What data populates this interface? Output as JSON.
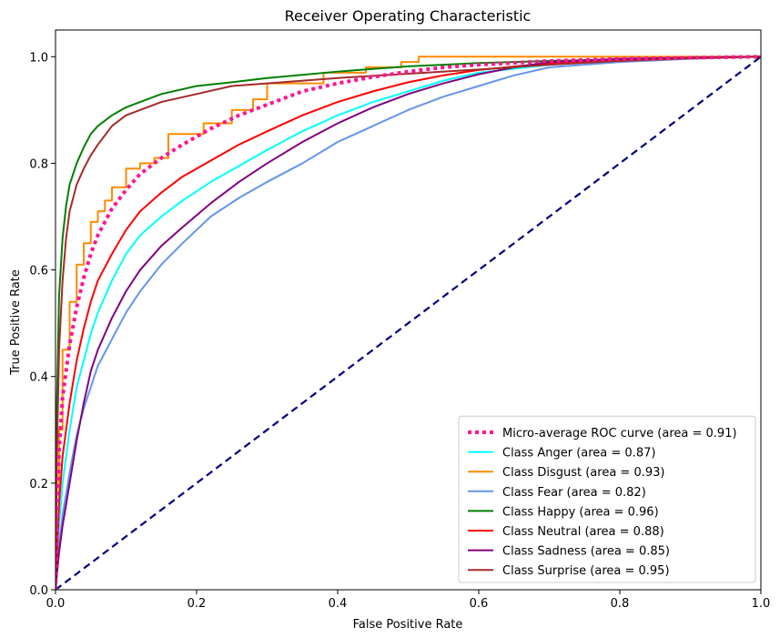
{
  "chart_data": {
    "type": "line",
    "title": "Receiver Operating Characteristic",
    "xlabel": "False Positive Rate",
    "ylabel": "True Positive Rate",
    "xlim": [
      0,
      1
    ],
    "ylim": [
      0,
      1.05
    ],
    "xticks": [
      "0.0",
      "0.2",
      "0.4",
      "0.6",
      "0.8",
      "1.0"
    ],
    "yticks": [
      "0.0",
      "0.2",
      "0.4",
      "0.6",
      "0.8",
      "1.0"
    ],
    "grid": false,
    "legend_position": "lower-right",
    "series": [
      {
        "name": "Micro-average ROC curve (area = 0.91)",
        "color": "#ff1493",
        "style": "dotted",
        "width": 4,
        "x": [
          0,
          0.005,
          0.01,
          0.02,
          0.03,
          0.04,
          0.05,
          0.06,
          0.08,
          0.1,
          0.12,
          0.15,
          0.18,
          0.22,
          0.26,
          0.3,
          0.35,
          0.4,
          0.45,
          0.5,
          0.55,
          0.6,
          0.7,
          0.8,
          0.9,
          1.0
        ],
        "y": [
          0,
          0.26,
          0.36,
          0.46,
          0.53,
          0.585,
          0.63,
          0.665,
          0.715,
          0.75,
          0.78,
          0.81,
          0.835,
          0.865,
          0.89,
          0.91,
          0.935,
          0.95,
          0.962,
          0.972,
          0.98,
          0.985,
          0.992,
          0.996,
          0.998,
          1.0
        ]
      },
      {
        "name": "Class Anger (area = 0.87)",
        "color": "#00ffff",
        "style": "solid",
        "width": 2,
        "x": [
          0,
          0.005,
          0.01,
          0.02,
          0.03,
          0.04,
          0.05,
          0.06,
          0.08,
          0.1,
          0.12,
          0.15,
          0.18,
          0.22,
          0.26,
          0.3,
          0.35,
          0.4,
          0.45,
          0.5,
          0.55,
          0.6,
          0.7,
          0.8,
          0.9,
          1.0
        ],
        "y": [
          0,
          0.12,
          0.2,
          0.3,
          0.38,
          0.43,
          0.48,
          0.52,
          0.58,
          0.63,
          0.665,
          0.7,
          0.73,
          0.765,
          0.795,
          0.825,
          0.86,
          0.89,
          0.915,
          0.935,
          0.955,
          0.97,
          0.985,
          0.993,
          0.998,
          1.0
        ]
      },
      {
        "name": "Class Disgust (area = 0.93)",
        "color": "#ff8c00",
        "style": "solid",
        "width": 2,
        "x": [
          0,
          0.0,
          0.005,
          0.005,
          0.01,
          0.01,
          0.02,
          0.02,
          0.03,
          0.03,
          0.04,
          0.04,
          0.05,
          0.05,
          0.06,
          0.06,
          0.07,
          0.07,
          0.08,
          0.08,
          0.1,
          0.1,
          0.12,
          0.12,
          0.14,
          0.14,
          0.16,
          0.16,
          0.21,
          0.21,
          0.25,
          0.25,
          0.28,
          0.28,
          0.3,
          0.3,
          0.38,
          0.38,
          0.44,
          0.44,
          0.49,
          0.49,
          0.515,
          0.515,
          1.0
        ],
        "y": [
          0,
          0.15,
          0.15,
          0.3,
          0.3,
          0.45,
          0.45,
          0.54,
          0.54,
          0.61,
          0.61,
          0.65,
          0.65,
          0.69,
          0.69,
          0.71,
          0.71,
          0.73,
          0.73,
          0.755,
          0.755,
          0.79,
          0.79,
          0.8,
          0.8,
          0.81,
          0.81,
          0.855,
          0.855,
          0.875,
          0.875,
          0.9,
          0.9,
          0.92,
          0.92,
          0.95,
          0.95,
          0.97,
          0.97,
          0.98,
          0.98,
          0.99,
          0.99,
          1.0,
          1.0
        ]
      },
      {
        "name": "Class Fear (area = 0.82)",
        "color": "#6495ed",
        "style": "solid",
        "width": 2,
        "x": [
          0,
          0.005,
          0.01,
          0.02,
          0.03,
          0.04,
          0.05,
          0.06,
          0.08,
          0.1,
          0.12,
          0.15,
          0.18,
          0.22,
          0.26,
          0.3,
          0.35,
          0.4,
          0.45,
          0.5,
          0.55,
          0.6,
          0.65,
          0.7,
          0.8,
          0.9,
          1.0
        ],
        "y": [
          0,
          0.08,
          0.14,
          0.22,
          0.29,
          0.34,
          0.38,
          0.42,
          0.47,
          0.52,
          0.56,
          0.61,
          0.65,
          0.7,
          0.735,
          0.765,
          0.8,
          0.84,
          0.87,
          0.9,
          0.925,
          0.945,
          0.965,
          0.98,
          0.99,
          0.996,
          1.0
        ]
      },
      {
        "name": "Class Happy (area = 0.96)",
        "color": "#008000",
        "style": "solid",
        "width": 2,
        "x": [
          0,
          0.002,
          0.005,
          0.01,
          0.015,
          0.02,
          0.03,
          0.04,
          0.05,
          0.06,
          0.08,
          0.1,
          0.12,
          0.15,
          0.2,
          0.25,
          0.3,
          0.4,
          0.5,
          0.6,
          0.7,
          0.8,
          0.9,
          1.0
        ],
        "y": [
          0,
          0.35,
          0.55,
          0.66,
          0.72,
          0.76,
          0.8,
          0.83,
          0.855,
          0.87,
          0.89,
          0.905,
          0.915,
          0.93,
          0.945,
          0.952,
          0.96,
          0.972,
          0.982,
          0.988,
          0.992,
          0.995,
          0.998,
          1.0
        ]
      },
      {
        "name": "Class Neutral (area = 0.88)",
        "color": "#ff0000",
        "style": "solid",
        "width": 2,
        "x": [
          0,
          0.005,
          0.01,
          0.02,
          0.03,
          0.04,
          0.05,
          0.06,
          0.08,
          0.1,
          0.12,
          0.15,
          0.18,
          0.22,
          0.26,
          0.3,
          0.35,
          0.4,
          0.45,
          0.5,
          0.55,
          0.6,
          0.7,
          0.8,
          0.9,
          1.0
        ],
        "y": [
          0,
          0.16,
          0.25,
          0.35,
          0.43,
          0.49,
          0.54,
          0.58,
          0.63,
          0.675,
          0.71,
          0.745,
          0.775,
          0.805,
          0.835,
          0.86,
          0.89,
          0.915,
          0.935,
          0.952,
          0.965,
          0.975,
          0.988,
          0.995,
          0.998,
          1.0
        ]
      },
      {
        "name": "Class Sadness (area = 0.85)",
        "color": "#800080",
        "style": "solid",
        "width": 2,
        "x": [
          0,
          0.005,
          0.01,
          0.02,
          0.03,
          0.04,
          0.05,
          0.06,
          0.08,
          0.1,
          0.12,
          0.15,
          0.18,
          0.22,
          0.26,
          0.3,
          0.35,
          0.4,
          0.45,
          0.5,
          0.55,
          0.6,
          0.65,
          0.7,
          0.8,
          0.9,
          1.0
        ],
        "y": [
          0,
          0.07,
          0.12,
          0.2,
          0.28,
          0.35,
          0.41,
          0.45,
          0.51,
          0.56,
          0.6,
          0.645,
          0.68,
          0.725,
          0.765,
          0.8,
          0.84,
          0.875,
          0.905,
          0.93,
          0.95,
          0.967,
          0.98,
          0.99,
          0.996,
          0.998,
          1.0
        ]
      },
      {
        "name": "Class Surprise (area = 0.95)",
        "color": "#a52a2a",
        "style": "solid",
        "width": 2,
        "x": [
          0,
          0.002,
          0.005,
          0.01,
          0.015,
          0.02,
          0.03,
          0.04,
          0.05,
          0.06,
          0.08,
          0.1,
          0.12,
          0.15,
          0.2,
          0.25,
          0.3,
          0.4,
          0.5,
          0.6,
          0.7,
          0.8,
          0.9,
          1.0
        ],
        "y": [
          0,
          0.25,
          0.45,
          0.58,
          0.66,
          0.71,
          0.76,
          0.79,
          0.815,
          0.835,
          0.87,
          0.89,
          0.9,
          0.915,
          0.93,
          0.945,
          0.95,
          0.96,
          0.968,
          0.976,
          0.985,
          0.992,
          0.997,
          1.0
        ]
      }
    ],
    "reference_line": {
      "x": [
        0,
        1
      ],
      "y": [
        0,
        1
      ],
      "color": "#000080",
      "style": "dashed"
    }
  }
}
